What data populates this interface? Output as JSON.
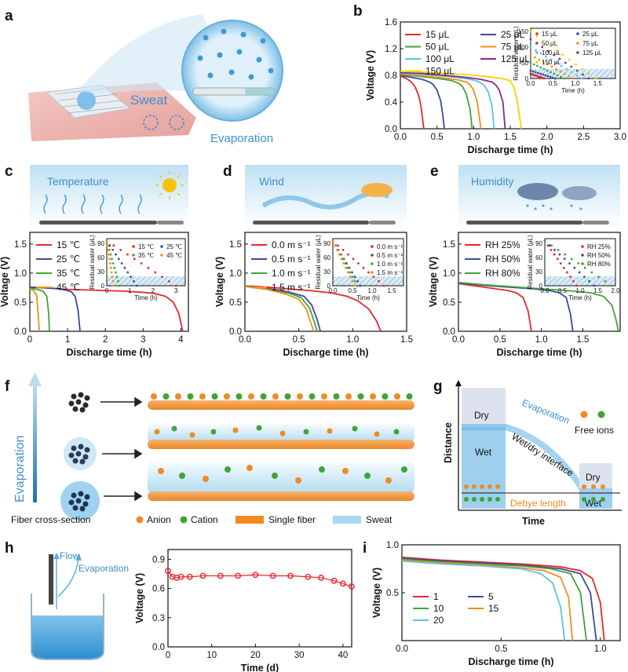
{
  "labels": {
    "a": "a",
    "b": "b",
    "c": "c",
    "d": "d",
    "e": "e",
    "f": "f",
    "g": "g",
    "h": "h",
    "i": "i"
  },
  "panel_a": {
    "sweat": "Sweat",
    "evaporation": "Evaporation"
  },
  "panel_c": {
    "banner": "Temperature"
  },
  "panel_d": {
    "banner": "Wind"
  },
  "panel_e": {
    "banner": "Humidity"
  },
  "panel_f": {
    "evaporation": "Evaporation",
    "cross_section": "Fiber cross-section",
    "anion": "Anion",
    "cation": "Cation",
    "single_fiber": "Single fiber",
    "sweat": "Sweat"
  },
  "panel_g": {
    "distance": "Distance",
    "time": "Time",
    "dry1": "Dry",
    "wet1": "Wet",
    "evaporation": "Evaporation",
    "interface": "Wet/dry interface",
    "free_ions": "Free ions",
    "dry2": "Dry",
    "wet2": "Wet",
    "debye": "Debye length"
  },
  "panel_h_ill": {
    "flow": "Flow",
    "evaporation": "Evaporation"
  },
  "colors": {
    "red": "#e8262c",
    "navy": "#3b4a9c",
    "green": "#3fa535",
    "orange": "#f28e1c",
    "cyan": "#5bc3df",
    "purple": "#8b2a8f",
    "yellow": "#f3d500",
    "blue": "#3e9bd6"
  },
  "chart_data": [
    {
      "id": "b",
      "type": "line",
      "xlabel": "Discharge time (h)",
      "ylabel": "Voltage (V)",
      "xlim": [
        0,
        3
      ],
      "ylim": [
        0,
        1.6
      ],
      "xticks": [
        "0.0",
        "0.5",
        "1.0",
        "1.5",
        "2.0",
        "2.5",
        "3.0"
      ],
      "yticks": [
        "0.0",
        "0.4",
        "0.8",
        "1.2",
        "1.6"
      ],
      "series": [
        {
          "name": "15 μL",
          "color": "#e8262c",
          "x": [
            0,
            0.05,
            0.1,
            0.15,
            0.2,
            0.25,
            0.28,
            0.3,
            0.32
          ],
          "y": [
            0.79,
            0.77,
            0.74,
            0.7,
            0.63,
            0.5,
            0.35,
            0.18,
            0.0
          ]
        },
        {
          "name": "25 μL",
          "color": "#3b4a9c",
          "x": [
            0,
            0.1,
            0.2,
            0.3,
            0.4,
            0.45,
            0.5,
            0.55,
            0.58,
            0.6
          ],
          "y": [
            0.8,
            0.78,
            0.76,
            0.74,
            0.7,
            0.66,
            0.58,
            0.42,
            0.2,
            0.0
          ]
        },
        {
          "name": "50 μL",
          "color": "#3fa535",
          "x": [
            0,
            0.2,
            0.4,
            0.6,
            0.7,
            0.8,
            0.85,
            0.9,
            0.95,
            0.98
          ],
          "y": [
            0.81,
            0.79,
            0.77,
            0.74,
            0.72,
            0.68,
            0.63,
            0.52,
            0.3,
            0.0
          ]
        },
        {
          "name": "75 μL",
          "color": "#f28e1c",
          "x": [
            0,
            0.2,
            0.4,
            0.6,
            0.8,
            0.9,
            0.95,
            1.0,
            1.05,
            1.1
          ],
          "y": [
            0.82,
            0.8,
            0.78,
            0.76,
            0.73,
            0.7,
            0.66,
            0.58,
            0.4,
            0.0
          ]
        },
        {
          "name": "100 μL",
          "color": "#5bc3df",
          "x": [
            0,
            0.3,
            0.6,
            0.9,
            1.0,
            1.1,
            1.15,
            1.2,
            1.25,
            1.28
          ],
          "y": [
            0.83,
            0.81,
            0.79,
            0.75,
            0.73,
            0.69,
            0.64,
            0.55,
            0.35,
            0.0
          ]
        },
        {
          "name": "125 μL",
          "color": "#8b2a8f",
          "x": [
            0,
            0.3,
            0.6,
            0.9,
            1.1,
            1.25,
            1.3,
            1.35,
            1.4,
            1.43
          ],
          "y": [
            0.84,
            0.83,
            0.8,
            0.77,
            0.74,
            0.7,
            0.66,
            0.58,
            0.4,
            0.0
          ]
        },
        {
          "name": "150 μL",
          "color": "#f3d500",
          "x": [
            0,
            0.3,
            0.6,
            0.9,
            1.2,
            1.4,
            1.5,
            1.55,
            1.6,
            1.65
          ],
          "y": [
            0.86,
            0.85,
            0.83,
            0.81,
            0.78,
            0.75,
            0.72,
            0.62,
            0.4,
            0.0
          ]
        }
      ],
      "inset": {
        "xlabel": "Time (h)",
        "ylabel": "Residual water (μL)",
        "xlim": [
          0,
          1.9
        ],
        "ylim": [
          0,
          160
        ],
        "xticks": [
          "0.0",
          "0.5",
          "1.0",
          "1.5"
        ],
        "yticks": [
          "0",
          "50",
          "100",
          "150"
        ],
        "series": [
          {
            "name": "15 μL",
            "color": "#e8262c",
            "x0": 0.3,
            "y0": 15
          },
          {
            "name": "25 μL",
            "color": "#3b4a9c",
            "x0": 0.55,
            "y0": 25
          },
          {
            "name": "50 μL",
            "color": "#3fa535",
            "x0": 0.75,
            "y0": 50
          },
          {
            "name": "75 μL",
            "color": "#f28e1c",
            "x0": 0.95,
            "y0": 75
          },
          {
            "name": "100 μL",
            "color": "#5bc3df",
            "x0": 1.15,
            "y0": 100
          },
          {
            "name": "125 μL",
            "color": "#8b2a8f",
            "x0": 1.3,
            "y0": 125
          },
          {
            "name": "150 μL",
            "color": "#f3d500",
            "x0": 1.45,
            "y0": 150
          }
        ]
      }
    },
    {
      "id": "c",
      "type": "line",
      "xlabel": "Discharge time (h)",
      "ylabel": "Voltage (V)",
      "xlim": [
        0,
        4.2
      ],
      "ylim": [
        0,
        1.7
      ],
      "xticks": [
        "0",
        "1",
        "2",
        "3",
        "4"
      ],
      "yticks": [
        "0.0",
        "0.5",
        "1.0",
        "1.5"
      ],
      "series": [
        {
          "name": "15 ℃",
          "color": "#e8262c",
          "x": [
            0,
            0.5,
            1,
            1.5,
            2,
            2.5,
            3,
            3.3,
            3.6,
            3.8,
            3.95,
            4.05
          ],
          "y": [
            0.76,
            0.74,
            0.72,
            0.71,
            0.7,
            0.69,
            0.67,
            0.65,
            0.6,
            0.5,
            0.3,
            0.0
          ]
        },
        {
          "name": "25 ℃",
          "color": "#3b4a9c",
          "x": [
            0,
            0.3,
            0.6,
            0.9,
            1.1,
            1.2,
            1.28,
            1.33
          ],
          "y": [
            0.76,
            0.75,
            0.74,
            0.72,
            0.68,
            0.6,
            0.35,
            0.0
          ]
        },
        {
          "name": "35 ℃",
          "color": "#3fa535",
          "x": [
            0,
            0.2,
            0.35,
            0.45,
            0.5,
            0.52
          ],
          "y": [
            0.74,
            0.72,
            0.69,
            0.6,
            0.3,
            0.0
          ]
        },
        {
          "name": "45 ℃",
          "color": "#f28e1c",
          "x": [
            0,
            0.1,
            0.18,
            0.22,
            0.25
          ],
          "y": [
            0.73,
            0.7,
            0.62,
            0.3,
            0.0
          ]
        }
      ],
      "inset": {
        "xlabel": "Time (h)",
        "ylabel": "Residual water (μL)",
        "xlim": [
          0,
          3.4
        ],
        "ylim": [
          0,
          100
        ],
        "xticks": [
          "0",
          "1",
          "2",
          "3"
        ],
        "yticks": [
          "0",
          "30",
          "60",
          "90"
        ],
        "series": [
          {
            "name": "15 ℃",
            "color": "#e8262c",
            "x0": 3.0,
            "y0": 95
          },
          {
            "name": "25 ℃",
            "color": "#3b4a9c",
            "x0": 1.3,
            "y0": 95
          },
          {
            "name": "35 ℃",
            "color": "#3fa535",
            "x0": 0.55,
            "y0": 95
          },
          {
            "name": "45 ℃",
            "color": "#f28e1c",
            "x0": 0.3,
            "y0": 95
          }
        ]
      }
    },
    {
      "id": "d",
      "type": "line",
      "xlabel": "Discharge time (h)",
      "ylabel": "Voltage (V)",
      "xlim": [
        0,
        1.5
      ],
      "ylim": [
        0,
        1.7
      ],
      "xticks": [
        "0.0",
        "0.5",
        "1.0",
        "1.5"
      ],
      "yticks": [
        "0.0",
        "0.5",
        "1.0",
        "1.5"
      ],
      "series": [
        {
          "name": "0.0 m s⁻¹",
          "color": "#e8262c",
          "x": [
            0,
            0.2,
            0.4,
            0.6,
            0.8,
            0.95,
            1.05,
            1.15,
            1.22,
            1.26
          ],
          "y": [
            0.78,
            0.76,
            0.73,
            0.7,
            0.66,
            0.6,
            0.52,
            0.38,
            0.18,
            0.0
          ]
        },
        {
          "name": "0.5 m s⁻¹",
          "color": "#3b4a9c",
          "x": [
            0,
            0.2,
            0.4,
            0.55,
            0.62,
            0.67,
            0.7
          ],
          "y": [
            0.78,
            0.74,
            0.68,
            0.6,
            0.45,
            0.2,
            0.0
          ]
        },
        {
          "name": "1.0 m s⁻¹",
          "color": "#3fa535",
          "x": [
            0,
            0.2,
            0.4,
            0.52,
            0.6,
            0.64,
            0.67
          ],
          "y": [
            0.78,
            0.73,
            0.66,
            0.58,
            0.4,
            0.18,
            0.0
          ]
        },
        {
          "name": "1.5 m s⁻¹",
          "color": "#f28e1c",
          "x": [
            0,
            0.2,
            0.38,
            0.5,
            0.57,
            0.61,
            0.64
          ],
          "y": [
            0.77,
            0.72,
            0.64,
            0.55,
            0.38,
            0.15,
            0.0
          ]
        }
      ],
      "inset": {
        "xlabel": "Time (h)",
        "ylabel": "Residual water (μL)",
        "xlim": [
          0,
          1.8
        ],
        "ylim": [
          0,
          100
        ],
        "xticks": [
          "0.0",
          "0.5",
          "1.0",
          "1.5"
        ],
        "yticks": [
          "0",
          "30",
          "60",
          "90"
        ],
        "series": [
          {
            "name": "0.0 m s⁻¹",
            "color": "#e8262c",
            "x0": 1.3,
            "y0": 95
          },
          {
            "name": "0.5 m s⁻¹",
            "color": "#3b4a9c",
            "x0": 0.7,
            "y0": 95
          },
          {
            "name": "1.0 m s⁻¹",
            "color": "#3fa535",
            "x0": 0.62,
            "y0": 95
          },
          {
            "name": "1.5 m s⁻¹",
            "color": "#f28e1c",
            "x0": 0.55,
            "y0": 95
          }
        ]
      }
    },
    {
      "id": "e",
      "type": "line",
      "xlabel": "Discharge time (h)",
      "ylabel": "Voltage (V)",
      "xlim": [
        0,
        1.95
      ],
      "ylim": [
        0,
        1.7
      ],
      "xticks": [
        "0.0",
        "0.5",
        "1.0",
        "1.5"
      ],
      "yticks": [
        "0.0",
        "0.5",
        "1.0",
        "1.5"
      ],
      "series": [
        {
          "name": "RH 25%",
          "color": "#e8262c",
          "x": [
            0,
            0.2,
            0.4,
            0.6,
            0.7,
            0.78,
            0.84,
            0.88
          ],
          "y": [
            0.82,
            0.78,
            0.74,
            0.7,
            0.66,
            0.58,
            0.35,
            0.0
          ]
        },
        {
          "name": "RH 50%",
          "color": "#3b4a9c",
          "x": [
            0,
            0.3,
            0.6,
            0.9,
            1.1,
            1.22,
            1.3,
            1.35,
            1.38
          ],
          "y": [
            0.83,
            0.79,
            0.76,
            0.73,
            0.7,
            0.66,
            0.58,
            0.3,
            0.0
          ]
        },
        {
          "name": "RH 80%",
          "color": "#3fa535",
          "x": [
            0,
            0.3,
            0.6,
            0.9,
            1.2,
            1.4,
            1.6,
            1.75,
            1.85,
            1.9,
            1.93
          ],
          "y": [
            0.84,
            0.8,
            0.77,
            0.74,
            0.71,
            0.69,
            0.66,
            0.6,
            0.45,
            0.2,
            0.0
          ]
        }
      ],
      "inset": {
        "xlabel": "Time (h)",
        "ylabel": "Residual water (μL)",
        "xlim": [
          0,
          2.0
        ],
        "ylim": [
          0,
          100
        ],
        "xticks": [
          "0.0",
          "0.5",
          "1.0",
          "1.5",
          "2.0"
        ],
        "yticks": [
          "0",
          "30",
          "60",
          "90"
        ],
        "series": [
          {
            "name": "RH 25%",
            "color": "#e8262c",
            "x0": 0.9,
            "y0": 95
          },
          {
            "name": "RH 50%",
            "color": "#3b4a9c",
            "x0": 1.4,
            "y0": 95
          },
          {
            "name": "RH 80%",
            "color": "#3fa535",
            "x0": 1.9,
            "y0": 95
          }
        ]
      }
    },
    {
      "id": "h",
      "type": "scatter",
      "xlabel": "Time (d)",
      "ylabel": "Voltage (V)",
      "xlim": [
        0,
        42
      ],
      "ylim": [
        0,
        1.0
      ],
      "xticks": [
        "0",
        "10",
        "20",
        "30",
        "40"
      ],
      "yticks": [
        "0.0",
        "0.3",
        "0.6",
        "0.9"
      ],
      "series": [
        {
          "name": "",
          "color": "#e8262c",
          "x": [
            0,
            1,
            2,
            3,
            5,
            8,
            12,
            16,
            20,
            24,
            28,
            32,
            35,
            38,
            40,
            42
          ],
          "y": [
            0.78,
            0.72,
            0.71,
            0.72,
            0.72,
            0.73,
            0.73,
            0.73,
            0.74,
            0.73,
            0.73,
            0.72,
            0.71,
            0.68,
            0.65,
            0.62
          ]
        }
      ]
    },
    {
      "id": "i",
      "type": "line",
      "xlabel": "Discharge time (h)",
      "ylabel": "Voltage (V)",
      "xlim": [
        0,
        1.1
      ],
      "ylim": [
        0,
        1.0
      ],
      "xticks": [
        "0.0",
        "0.5",
        "1.0"
      ],
      "yticks": [
        "0.5",
        "1.0"
      ],
      "series": [
        {
          "name": "1",
          "color": "#e8262c",
          "x": [
            0,
            0.2,
            0.4,
            0.6,
            0.8,
            0.9,
            0.96,
            1.0,
            1.02
          ],
          "y": [
            0.87,
            0.84,
            0.82,
            0.8,
            0.77,
            0.73,
            0.65,
            0.4,
            0.0
          ]
        },
        {
          "name": "5",
          "color": "#3b4a9c",
          "x": [
            0,
            0.2,
            0.4,
            0.6,
            0.8,
            0.9,
            0.95,
            0.98
          ],
          "y": [
            0.86,
            0.83,
            0.81,
            0.79,
            0.75,
            0.7,
            0.5,
            0.0
          ]
        },
        {
          "name": "10",
          "color": "#3fa535",
          "x": [
            0,
            0.2,
            0.4,
            0.6,
            0.75,
            0.85,
            0.9,
            0.93
          ],
          "y": [
            0.85,
            0.82,
            0.8,
            0.78,
            0.75,
            0.7,
            0.5,
            0.0
          ]
        },
        {
          "name": "15",
          "color": "#f28e1c",
          "x": [
            0,
            0.2,
            0.4,
            0.6,
            0.72,
            0.8,
            0.84,
            0.86
          ],
          "y": [
            0.84,
            0.81,
            0.79,
            0.76,
            0.73,
            0.66,
            0.45,
            0.0
          ]
        },
        {
          "name": "20",
          "color": "#5bc3df",
          "x": [
            0,
            0.2,
            0.4,
            0.6,
            0.7,
            0.76,
            0.8,
            0.82
          ],
          "y": [
            0.83,
            0.8,
            0.78,
            0.75,
            0.7,
            0.6,
            0.35,
            0.0
          ]
        }
      ]
    }
  ]
}
